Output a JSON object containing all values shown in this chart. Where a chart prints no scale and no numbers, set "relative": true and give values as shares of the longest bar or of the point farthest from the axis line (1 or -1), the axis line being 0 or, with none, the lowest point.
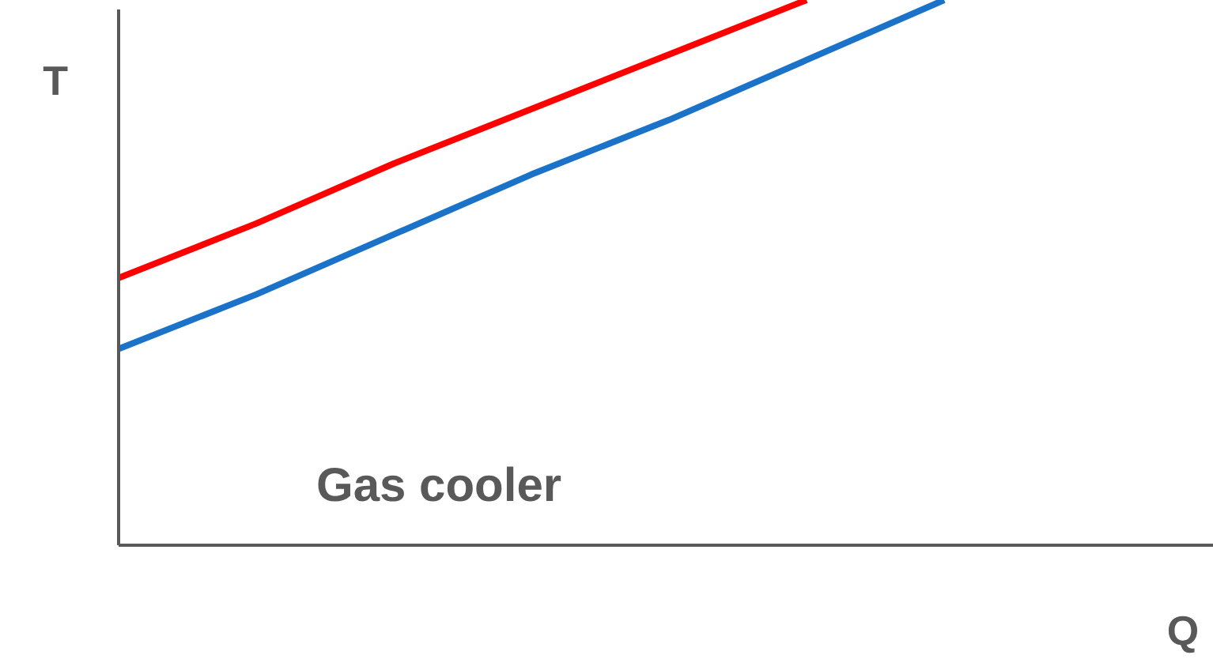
{
  "chart_data": {
    "type": "line",
    "relative": true,
    "xlabel": "Q",
    "ylabel": "T",
    "categories": [
      null,
      null,
      null,
      null,
      null,
      null,
      null
    ],
    "series": [
      {
        "color": "#ff0000",
        "values": [
          0.49,
          0.59,
          0.7,
          0.8,
          0.9,
          1.0,
          null
        ]
      },
      {
        "color": "#1a73c8",
        "values": [
          0.36,
          0.46,
          0.57,
          0.68,
          0.78,
          0.89,
          1.0
        ]
      }
    ],
    "annotations": [
      "Gas cooler"
    ]
  }
}
